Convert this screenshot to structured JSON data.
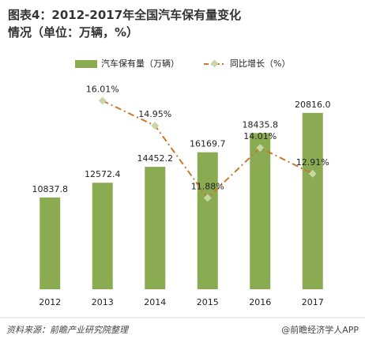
{
  "chart_data": {
    "type": "bar",
    "title": "图表4：2012-2017年全国汽车保有量变化情况（单位：万辆，%）",
    "categories": [
      "2012",
      "2013",
      "2014",
      "2015",
      "2016",
      "2017"
    ],
    "series": [
      {
        "name": "汽车保有量（万辆）",
        "type": "bar",
        "color": "#8aab52",
        "values": [
          10837.8,
          12572.4,
          14452.2,
          16169.7,
          18435.8,
          20816.0
        ],
        "value_labels": [
          "10837.8",
          "12572.4",
          "14452.2",
          "16169.7",
          "18435.8",
          "20816.0"
        ]
      },
      {
        "name": "同比增长（%）",
        "type": "line",
        "axis": "y2",
        "color": "#c8782f",
        "marker_color": "#c5d8a4",
        "values": [
          null,
          16.01,
          14.95,
          11.88,
          14.01,
          12.91
        ],
        "value_labels": [
          null,
          "16.01%",
          "14.95%",
          "11.88%",
          "14.01%",
          "12.91%"
        ]
      }
    ],
    "ylim": [
      0,
      25000
    ],
    "y2lim": [
      8,
      17
    ],
    "legend": "top",
    "source": "资料来源：前瞻产业研究院整理",
    "brand": "@前瞻经济学人APP"
  }
}
